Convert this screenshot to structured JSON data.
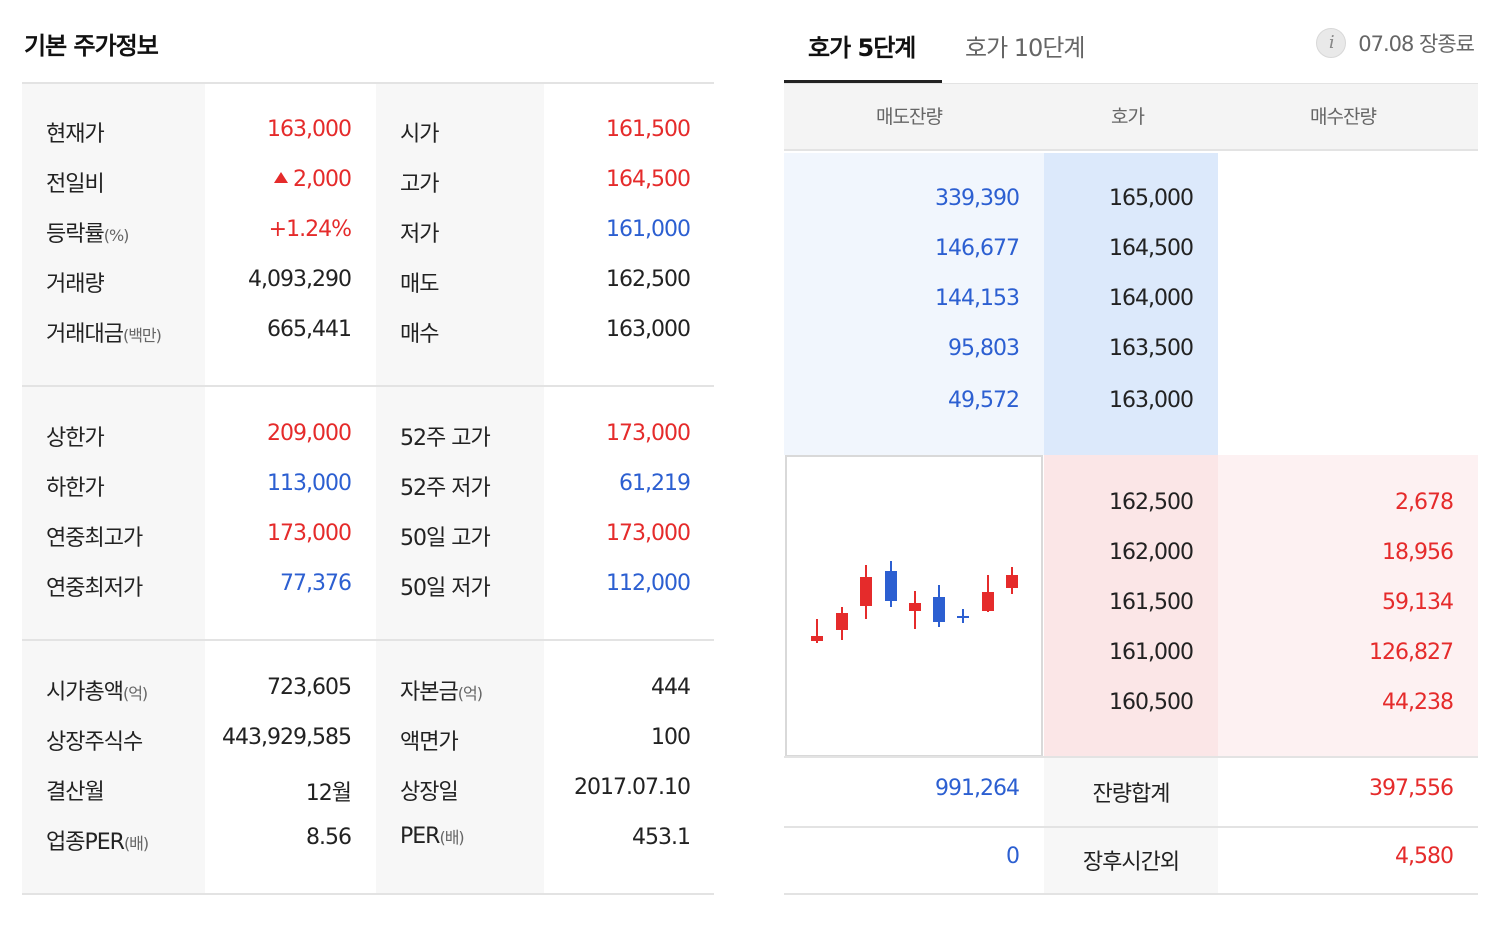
{
  "left": {
    "title": "기본 주가정보",
    "block1": [
      {
        "l1": "현재가",
        "l1s": "",
        "v1": "163,000",
        "v1c": "red",
        "up1": false,
        "l2": "시가",
        "l2s": "",
        "v2": "161,500",
        "v2c": "red"
      },
      {
        "l1": "전일비",
        "l1s": "",
        "v1": "2,000",
        "v1c": "red",
        "up1": true,
        "l2": "고가",
        "l2s": "",
        "v2": "164,500",
        "v2c": "red"
      },
      {
        "l1": "등락률",
        "l1s": "(%)",
        "v1": "+1.24%",
        "v1c": "red",
        "up1": false,
        "l2": "저가",
        "l2s": "",
        "v2": "161,000",
        "v2c": "blue"
      },
      {
        "l1": "거래량",
        "l1s": "",
        "v1": "4,093,290",
        "v1c": "dark",
        "up1": false,
        "l2": "매도",
        "l2s": "",
        "v2": "162,500",
        "v2c": "dark"
      },
      {
        "l1": "거래대금",
        "l1s": "(백만)",
        "v1": "665,441",
        "v1c": "dark",
        "up1": false,
        "l2": "매수",
        "l2s": "",
        "v2": "163,000",
        "v2c": "dark"
      }
    ],
    "block2": [
      {
        "l1": "상한가",
        "l1s": "",
        "v1": "209,000",
        "v1c": "red",
        "up1": false,
        "l2": "52주 고가",
        "l2s": "",
        "v2": "173,000",
        "v2c": "red"
      },
      {
        "l1": "하한가",
        "l1s": "",
        "v1": "113,000",
        "v1c": "blue",
        "up1": false,
        "l2": "52주 저가",
        "l2s": "",
        "v2": "61,219",
        "v2c": "blue"
      },
      {
        "l1": "연중최고가",
        "l1s": "",
        "v1": "173,000",
        "v1c": "red",
        "up1": false,
        "l2": "50일 고가",
        "l2s": "",
        "v2": "173,000",
        "v2c": "red"
      },
      {
        "l1": "연중최저가",
        "l1s": "",
        "v1": "77,376",
        "v1c": "blue",
        "up1": false,
        "l2": "50일 저가",
        "l2s": "",
        "v2": "112,000",
        "v2c": "blue"
      }
    ],
    "block3": [
      {
        "l1": "시가총액",
        "l1s": "(억)",
        "v1": "723,605",
        "v1c": "dark",
        "up1": false,
        "l2": "자본금",
        "l2s": "(억)",
        "v2": "444",
        "v2c": "dark"
      },
      {
        "l1": "상장주식수",
        "l1s": "",
        "v1": "443,929,585",
        "v1c": "dark",
        "up1": false,
        "l2": "액면가",
        "l2s": "",
        "v2": "100",
        "v2c": "dark"
      },
      {
        "l1": "결산월",
        "l1s": "",
        "v1": "12월",
        "v1c": "dark",
        "up1": false,
        "l2": "상장일",
        "l2s": "",
        "v2": "2017.07.10",
        "v2c": "dark"
      },
      {
        "l1": "업종PER",
        "l1s": "(배)",
        "v1": "8.56",
        "v1c": "dark",
        "up1": false,
        "l2": "PER",
        "l2s": "(배)",
        "v2": "453.1",
        "v2c": "dark"
      }
    ]
  },
  "right": {
    "tabs": [
      {
        "label": "호가 5단계",
        "active": true
      },
      {
        "label": "호가 10단계",
        "active": false
      }
    ],
    "status": "07.08 장종료",
    "info_icon": "info-icon",
    "headers": [
      "매도잔량",
      "호가",
      "매수잔량"
    ],
    "asks": [
      {
        "qty": "339,390",
        "price": "165,000"
      },
      {
        "qty": "146,677",
        "price": "164,500"
      },
      {
        "qty": "144,153",
        "price": "164,000"
      },
      {
        "qty": "95,803",
        "price": "163,500"
      },
      {
        "qty": "49,572",
        "price": "163,000"
      }
    ],
    "bids": [
      {
        "price": "162,500",
        "qty": "2,678"
      },
      {
        "price": "162,000",
        "qty": "18,956"
      },
      {
        "price": "161,500",
        "qty": "59,134"
      },
      {
        "price": "161,000",
        "qty": "126,827"
      },
      {
        "price": "160,500",
        "qty": "44,238"
      }
    ],
    "totals": {
      "label": "잔량합계",
      "ask": "991,264",
      "bid": "397,556"
    },
    "after_hours": {
      "label": "장후시간외",
      "ask": "0",
      "bid": "4,580"
    },
    "colors": {
      "up": "#e52b2b",
      "down": "#2c5fd1"
    },
    "mini_chart": [
      {
        "dir": "up"
      },
      {
        "dir": "up"
      },
      {
        "dir": "up"
      },
      {
        "dir": "down"
      },
      {
        "dir": "up"
      },
      {
        "dir": "down"
      },
      {
        "dir": "down"
      },
      {
        "dir": "up"
      },
      {
        "dir": "up"
      }
    ]
  }
}
